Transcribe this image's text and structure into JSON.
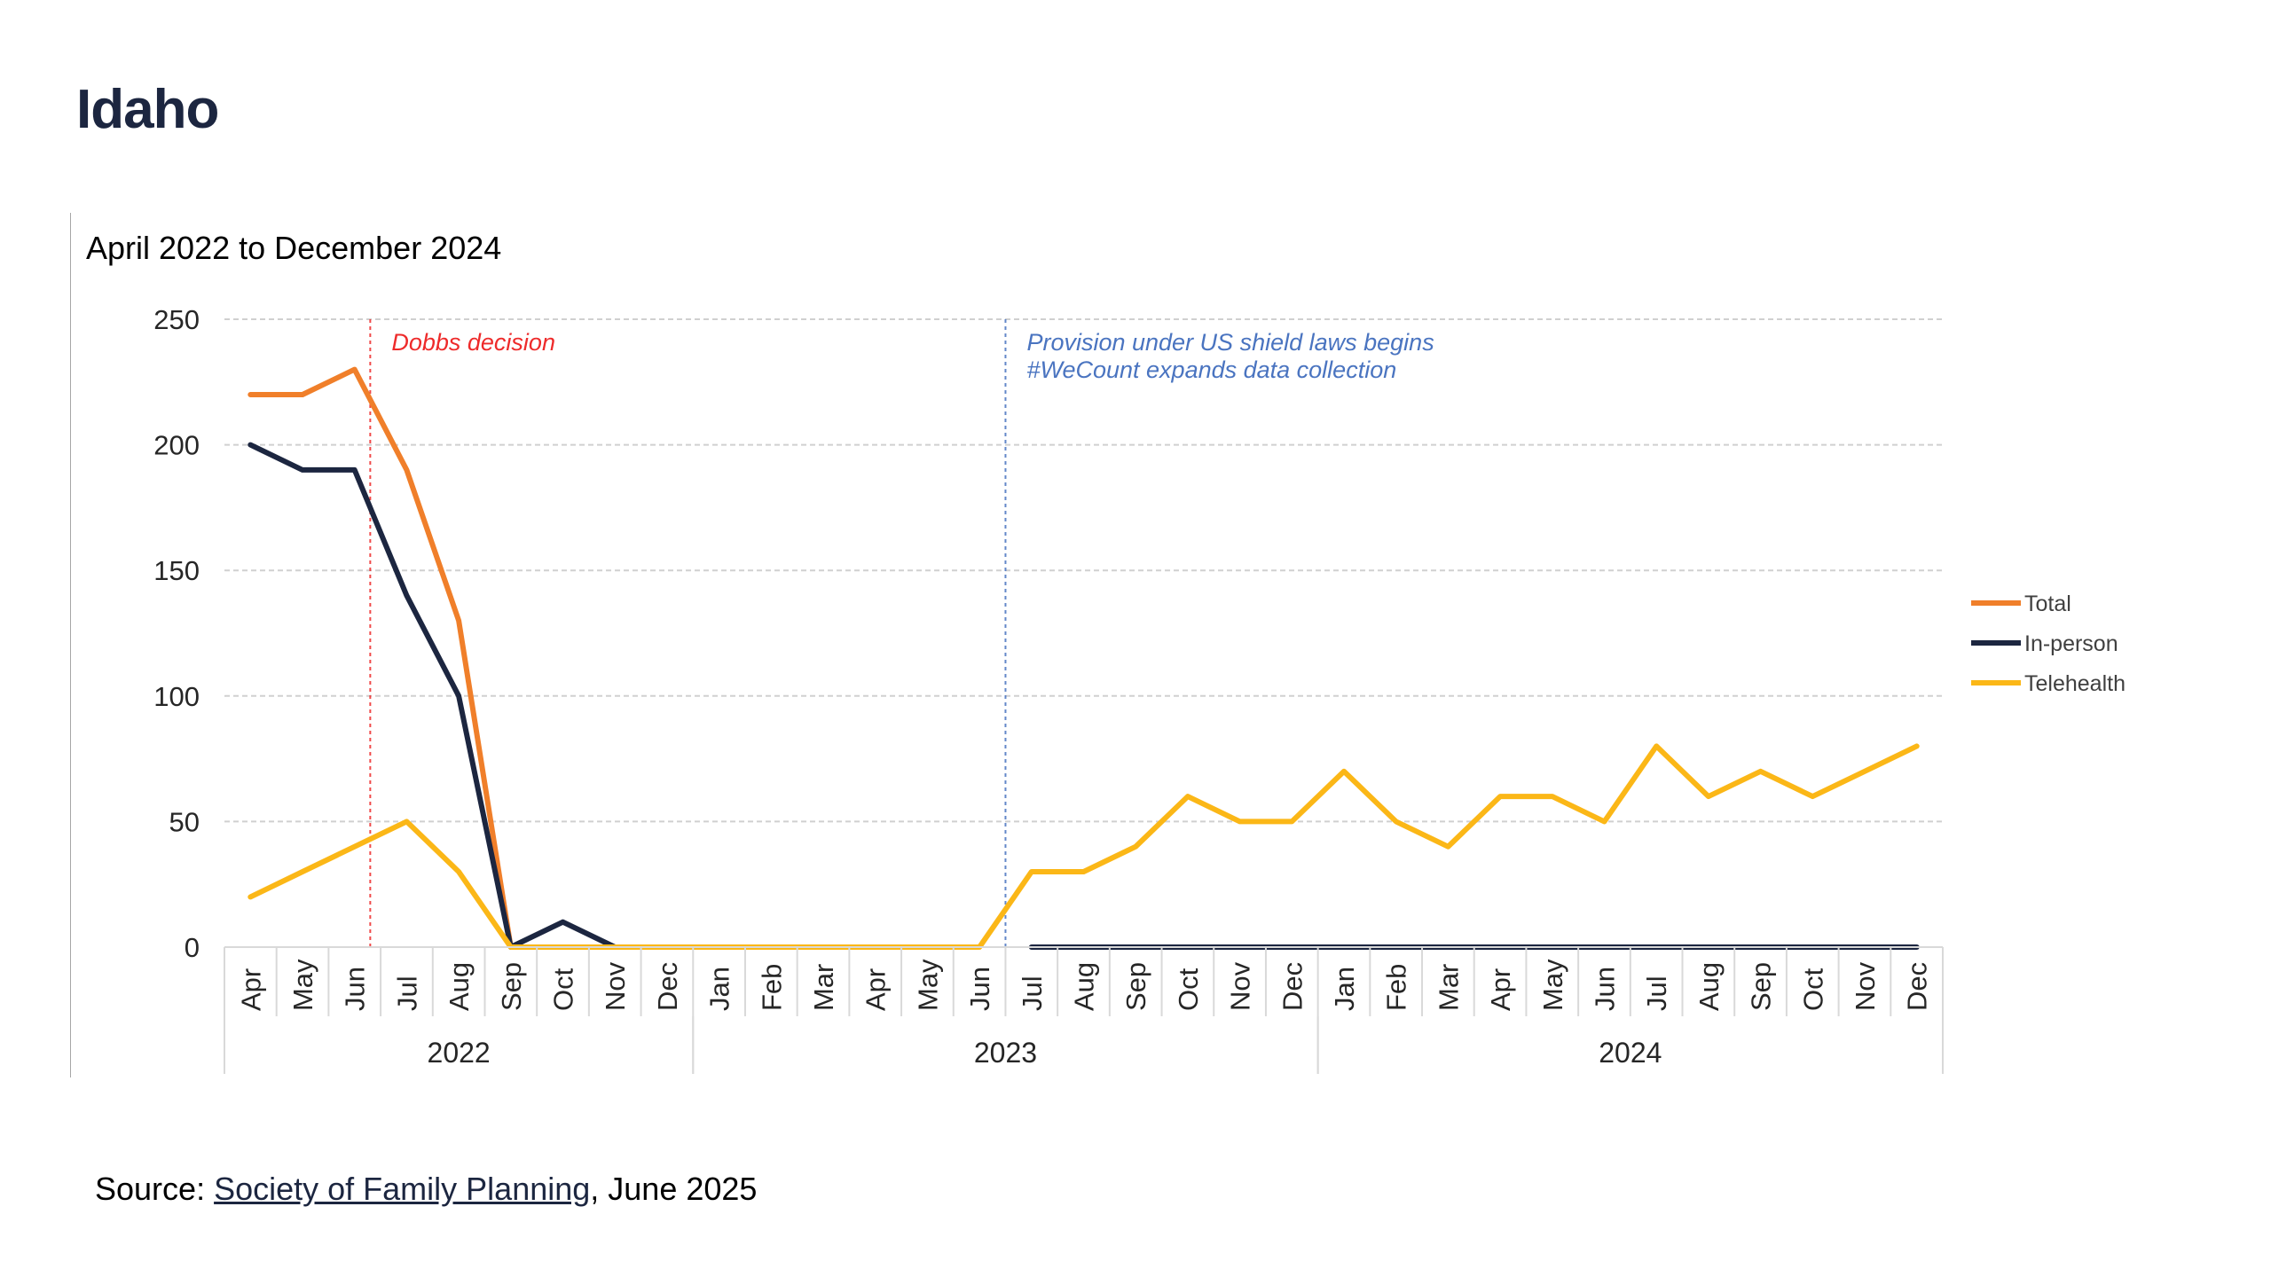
{
  "page": {
    "title": "Idaho"
  },
  "source": {
    "prefix": "Source: ",
    "link_text": "Society of Family Planning",
    "suffix": ", June 2025"
  },
  "chart_data": {
    "type": "line",
    "subtitle": "April 2022 to December 2024",
    "xlabel": "",
    "ylabel": "",
    "ylim": [
      0,
      250
    ],
    "yticks": [
      0,
      50,
      100,
      150,
      200,
      250
    ],
    "grid": true,
    "legend_position": "right",
    "categories": [
      "Apr",
      "May",
      "Jun",
      "Jul",
      "Aug",
      "Sep",
      "Oct",
      "Nov",
      "Dec",
      "Jan",
      "Feb",
      "Mar",
      "Apr",
      "May",
      "Jun",
      "Jul",
      "Aug",
      "Sep",
      "Oct",
      "Nov",
      "Dec",
      "Jan",
      "Feb",
      "Mar",
      "Apr",
      "May",
      "Jun",
      "Jul",
      "Aug",
      "Sep",
      "Oct",
      "Nov",
      "Dec"
    ],
    "year_groups": [
      {
        "label": "2022",
        "start": 0,
        "end": 8
      },
      {
        "label": "2023",
        "start": 9,
        "end": 20
      },
      {
        "label": "2024",
        "start": 21,
        "end": 32
      }
    ],
    "series": [
      {
        "name": "Total",
        "color": "#f07f2a",
        "values": [
          220,
          220,
          230,
          190,
          130,
          0,
          null,
          null,
          null,
          null,
          null,
          null,
          null,
          null,
          null,
          null,
          null,
          null,
          null,
          null,
          null,
          null,
          null,
          null,
          null,
          null,
          null,
          null,
          null,
          null,
          null,
          null,
          null
        ]
      },
      {
        "name": "In-person",
        "color": "#1c2640",
        "values": [
          200,
          190,
          190,
          140,
          100,
          0,
          10,
          0,
          null,
          null,
          null,
          null,
          null,
          null,
          null,
          0,
          0,
          0,
          0,
          0,
          0,
          0,
          0,
          0,
          0,
          0,
          0,
          0,
          0,
          0,
          0,
          0,
          0
        ]
      },
      {
        "name": "Telehealth",
        "color": "#fbb717",
        "values": [
          20,
          30,
          40,
          50,
          30,
          0,
          0,
          0,
          0,
          0,
          0,
          0,
          0,
          0,
          0,
          30,
          30,
          40,
          60,
          50,
          50,
          70,
          50,
          40,
          60,
          60,
          50,
          80,
          60,
          70,
          60,
          70,
          80
        ]
      }
    ],
    "annotations": [
      {
        "text": "Dobbs decision",
        "x": 2.3,
        "color": "#ee2b2b"
      },
      {
        "text": [
          "Provision under US shield laws begins",
          "#WeCount expands data collection"
        ],
        "x": 14.5,
        "color": "#4a74c0"
      }
    ]
  }
}
